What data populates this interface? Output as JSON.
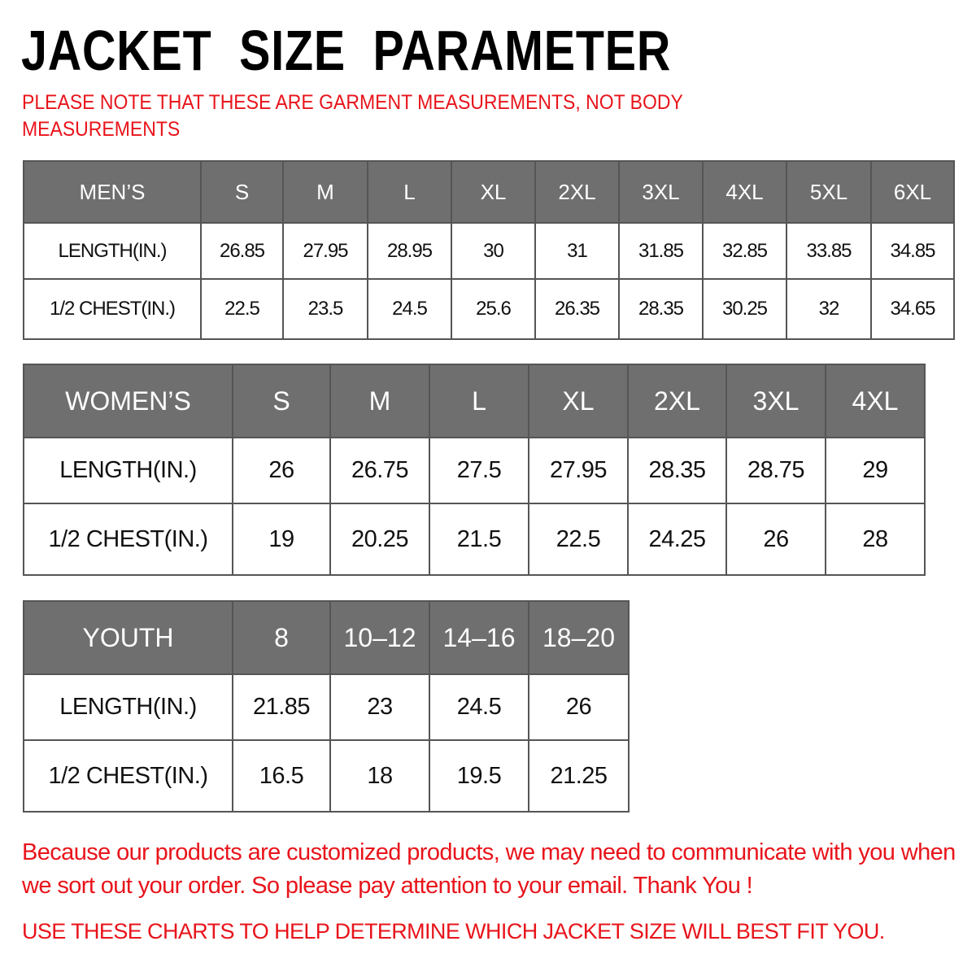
{
  "title": "JACKET  SIZE  PARAMETER",
  "note": "PLEASE NOTE THAT THESE ARE GARMENT MEASUREMENTS, NOT BODY MEASUREMENTS",
  "colors": {
    "header_bg": "#6f6f6f",
    "accent_red": "#e8141b"
  },
  "mens": {
    "headers": [
      "MEN’S",
      "S",
      "M",
      "L",
      "XL",
      "2XL",
      "3XL",
      "4XL",
      "5XL",
      "6XL"
    ],
    "rows": [
      [
        "LENGTH(IN.)",
        "26.85",
        "27.95",
        "28.95",
        "30",
        "31",
        "31.85",
        "32.85",
        "33.85",
        "34.85"
      ],
      [
        "1/2 CHEST(IN.)",
        "22.5",
        "23.5",
        "24.5",
        "25.6",
        "26.35",
        "28.35",
        "30.25",
        "32",
        "34.65"
      ]
    ]
  },
  "womens": {
    "headers": [
      "WOMEN’S",
      "S",
      "M",
      "L",
      "XL",
      "2XL",
      "3XL",
      "4XL"
    ],
    "rows": [
      [
        "LENGTH(IN.)",
        "26",
        "26.75",
        "27.5",
        "27.95",
        "28.35",
        "28.75",
        "29"
      ],
      [
        "1/2 CHEST(IN.)",
        "19",
        "20.25",
        "21.5",
        "22.5",
        "24.25",
        "26",
        "28"
      ]
    ]
  },
  "youth": {
    "headers": [
      "YOUTH",
      "8",
      "10–12",
      "14–16",
      "18–20"
    ],
    "rows": [
      [
        "LENGTH(IN.)",
        "21.85",
        "23",
        "24.5",
        "26"
      ],
      [
        "1/2 CHEST(IN.)",
        "16.5",
        "18",
        "19.5",
        "21.25"
      ]
    ]
  },
  "footer": {
    "message": "Because our products are customized products, we may need to communicate with you when we sort out your order. So please pay attention to your email. Thank You !",
    "instruction": "USE THESE CHARTS TO HELP DETERMINE WHICH JACKET SIZE WILL BEST FIT YOU."
  }
}
